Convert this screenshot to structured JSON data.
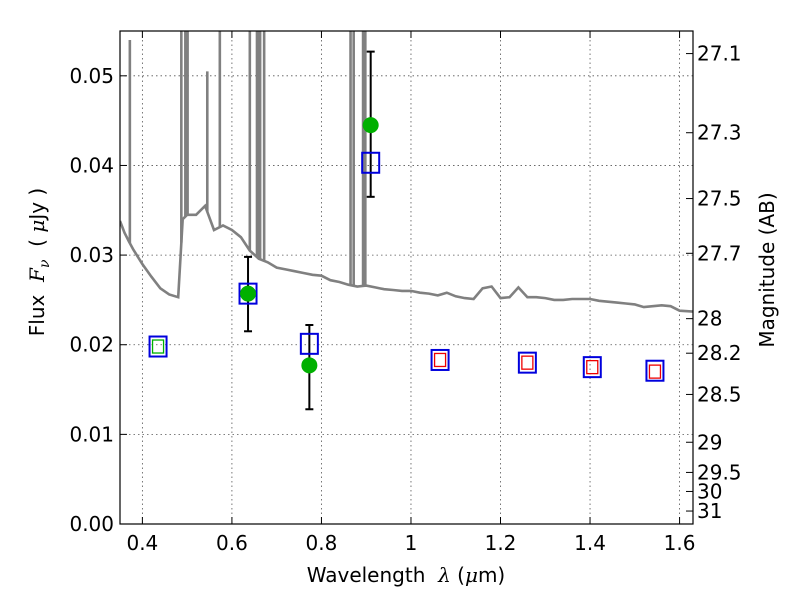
{
  "chart_data": {
    "type": "scatter",
    "title": "",
    "x_axis": {
      "title_parts": [
        "Wavelength  ",
        "λ",
        " (",
        "μ",
        "m)"
      ],
      "lim": [
        0.35,
        1.63
      ],
      "ticks": [
        0.4,
        0.6,
        0.8,
        1.0,
        1.2,
        1.4,
        1.6
      ],
      "tick_labels": [
        "0.4",
        "0.6",
        "0.8",
        "1",
        "1.2",
        "1.4",
        "1.6"
      ]
    },
    "y_axis": {
      "title_parts": [
        "Flux  ",
        "F",
        "ν",
        "  ( ",
        "μ",
        "Jy )"
      ],
      "lim": [
        0.0,
        0.055
      ],
      "ticks": [
        0.0,
        0.01,
        0.02,
        0.03,
        0.04,
        0.05
      ],
      "tick_labels": [
        "0.00",
        "0.01",
        "0.02",
        "0.03",
        "0.04",
        "0.05"
      ]
    },
    "y2_axis": {
      "title": "Magnitude (AB)",
      "tick_labels": [
        "27.1",
        "27.3",
        "27.5",
        "27.7",
        "28",
        "28.2",
        "28.5",
        "29",
        "29.5",
        "30",
        "31"
      ]
    },
    "grid": true,
    "series": [
      {
        "kind": "model_spectrum",
        "color": "#808080",
        "x": [
          0.35,
          0.36,
          0.37,
          0.38,
          0.39,
          0.4,
          0.42,
          0.44,
          0.46,
          0.48,
          0.49,
          0.5,
          0.52,
          0.54,
          0.56,
          0.58,
          0.6,
          0.62,
          0.64,
          0.66,
          0.68,
          0.7,
          0.72,
          0.74,
          0.76,
          0.78,
          0.8,
          0.82,
          0.84,
          0.86,
          0.88,
          0.9,
          0.92,
          0.94,
          0.96,
          0.98,
          1.0,
          1.02,
          1.04,
          1.06,
          1.08,
          1.1,
          1.12,
          1.14,
          1.16,
          1.18,
          1.2,
          1.22,
          1.24,
          1.26,
          1.28,
          1.3,
          1.32,
          1.34,
          1.36,
          1.38,
          1.4,
          1.42,
          1.44,
          1.46,
          1.48,
          1.5,
          1.52,
          1.54,
          1.56,
          1.58,
          1.6,
          1.63
        ],
        "y": [
          0.0338,
          0.0325,
          0.0315,
          0.0306,
          0.0298,
          0.029,
          0.0276,
          0.0263,
          0.0256,
          0.0253,
          0.034,
          0.0345,
          0.0345,
          0.0355,
          0.0328,
          0.0333,
          0.0328,
          0.032,
          0.0305,
          0.0296,
          0.0292,
          0.0286,
          0.0284,
          0.0282,
          0.028,
          0.0278,
          0.0277,
          0.0272,
          0.027,
          0.0267,
          0.0265,
          0.0266,
          0.0264,
          0.0262,
          0.0261,
          0.026,
          0.026,
          0.0258,
          0.0257,
          0.0255,
          0.0258,
          0.0254,
          0.0252,
          0.0251,
          0.0263,
          0.0265,
          0.0252,
          0.0253,
          0.0264,
          0.0253,
          0.0253,
          0.0252,
          0.025,
          0.025,
          0.0251,
          0.0251,
          0.0251,
          0.0249,
          0.0248,
          0.0247,
          0.0246,
          0.0245,
          0.0242,
          0.0243,
          0.0244,
          0.0243,
          0.0238,
          0.0237
        ]
      },
      {
        "kind": "emission_lines",
        "color": "#808080",
        "x": [
          0.372,
          0.487,
          0.496,
          0.501,
          0.545,
          0.573,
          0.64,
          0.656,
          0.658,
          0.663,
          0.672,
          0.865,
          0.872,
          0.893,
          0.898
        ],
        "y": [
          0.054,
          0.056,
          0.056,
          0.056,
          0.0505,
          0.056,
          0.056,
          0.056,
          0.056,
          0.056,
          0.056,
          0.056,
          0.056,
          0.056,
          0.056
        ]
      },
      {
        "kind": "observed_flux",
        "marker": "circle",
        "color": "#00b000",
        "x": [
          0.636,
          0.773,
          0.91
        ],
        "y": [
          0.0257,
          0.0177,
          0.0445
        ],
        "yerr": [
          [
            0.0257,
            0.0215,
            0.0298
          ],
          [
            0.0177,
            0.0128,
            0.0222
          ],
          [
            0.0445,
            0.0365,
            0.0527
          ]
        ]
      },
      {
        "kind": "model_flux",
        "marker": "square",
        "color": "#0000dd",
        "x": [
          0.435,
          0.636,
          0.773,
          0.91,
          1.065,
          1.26,
          1.405,
          1.545
        ],
        "y": [
          0.0198,
          0.0257,
          0.0201,
          0.0403,
          0.0183,
          0.018,
          0.0175,
          0.0171
        ]
      },
      {
        "kind": "upper_limit_flux",
        "marker": "small-square",
        "color": "#ee0000",
        "x": [
          1.065,
          1.26,
          1.405,
          1.545
        ],
        "y": [
          0.0183,
          0.018,
          0.0175,
          0.017
        ]
      },
      {
        "kind": "filter_flux",
        "marker": "small-square",
        "color": "#00b000",
        "x": [
          0.435
        ],
        "y": [
          0.0198
        ]
      }
    ]
  }
}
